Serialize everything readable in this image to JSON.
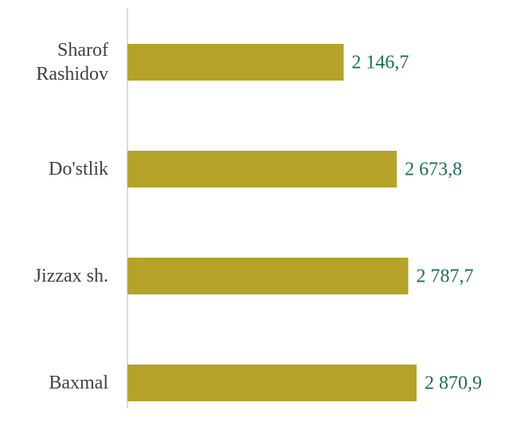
{
  "chart_data": {
    "type": "bar",
    "orientation": "horizontal",
    "categories": [
      "Sharof Rashidov",
      "Do'stlik",
      "Jizzax sh.",
      "Baxmal"
    ],
    "values": [
      2146.7,
      2673.8,
      2787.7,
      2870.9
    ],
    "value_labels": [
      "2 146,7",
      "2 673,8",
      "2 787,7",
      "2 870,9"
    ],
    "color": "#b4a328"
  }
}
